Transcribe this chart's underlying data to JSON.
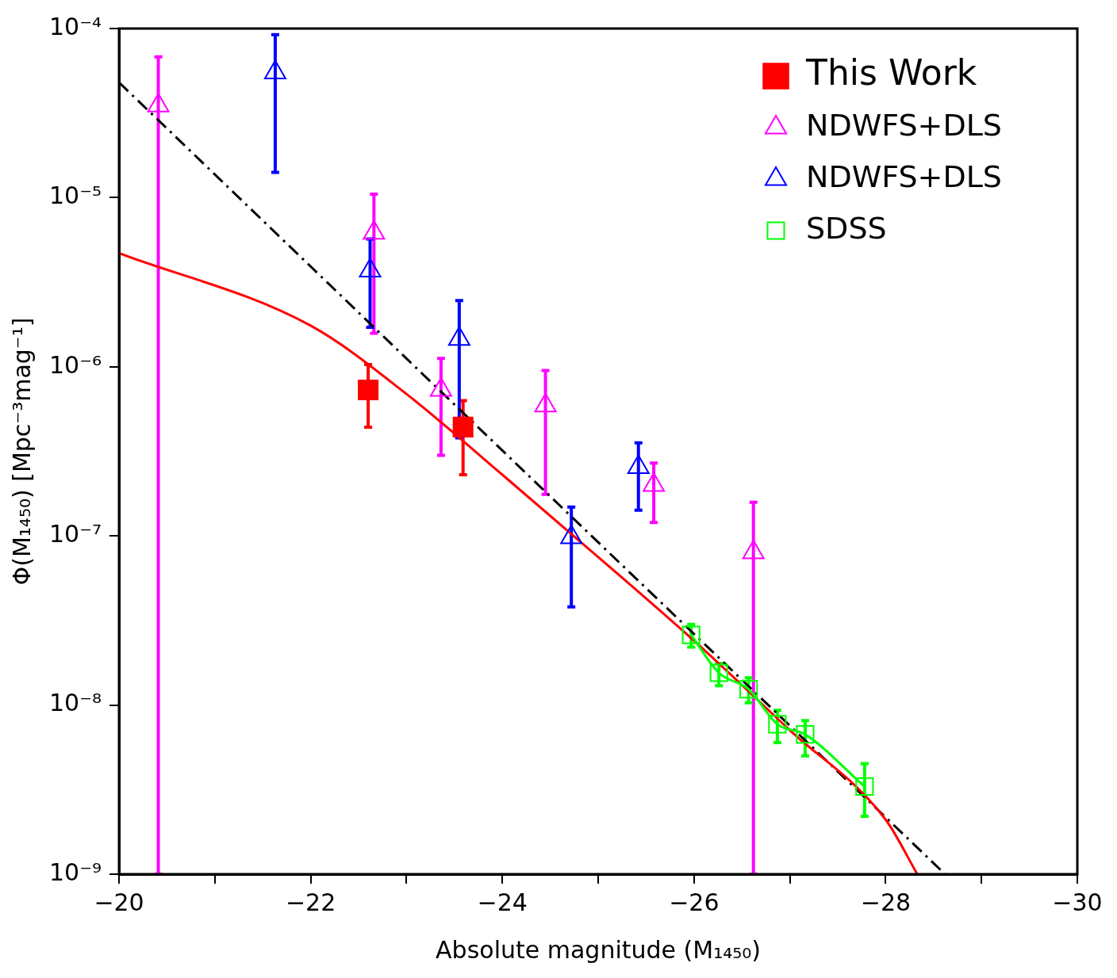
{
  "chart_data": {
    "type": "scatter",
    "xlabel": "Absolute magnitude (M₁₄₅₀)",
    "ylabel": "Φ(M₁₄₅₀) [Mpc⁻³mag⁻¹]",
    "xlim": [
      -20,
      -30
    ],
    "xticks": [
      -20,
      {
        "value": -21,
        "label": null
      },
      -22,
      {
        "value": -23,
        "label": null
      },
      -24,
      {
        "value": -25,
        "label": null
      },
      -26,
      {
        "value": -27,
        "label": null
      },
      -28,
      {
        "value": -29,
        "label": null
      },
      -30
    ],
    "ylim": [
      1e-09,
      0.0001
    ],
    "yticks": [
      {
        "value": 1e-09,
        "label": "10⁻⁹"
      },
      {
        "value": 1e-08,
        "label": "10⁻⁸"
      },
      {
        "value": 1e-07,
        "label": "10⁻⁷"
      },
      {
        "value": 1e-06,
        "label": "10⁻⁶"
      },
      {
        "value": 1e-05,
        "label": "10⁻⁵"
      },
      {
        "value": 0.0001,
        "label": "10⁻⁴"
      }
    ],
    "log": "y",
    "grid": false,
    "legend": "top right",
    "series": [
      {
        "name": "This Work",
        "type": "scatter",
        "marker": "square",
        "color": "#ff0000",
        "x": [
          -22.6,
          -23.59
        ],
        "values": [
          7.3e-07,
          4.4e-07
        ],
        "errors": [
          [
            4.4e-07,
            1.03e-06
          ],
          [
            2.3e-07,
            6.3e-07
          ]
        ]
      },
      {
        "name": "NDWFS+DLS",
        "type": "scatter",
        "marker": "triangle",
        "color": "#ff00ff",
        "x": [
          -20.41,
          -22.66,
          -23.36,
          -24.45,
          -25.58,
          -26.62
        ],
        "values": [
          3.5e-05,
          6.2e-06,
          7.3e-07,
          5.9e-07,
          2e-07,
          8e-08
        ],
        "errors": [
          [
            1e-09,
            6.8e-05
          ],
          [
            1.58e-06,
            1.05e-05
          ],
          [
            3e-07,
            1.12e-06
          ],
          [
            1.76e-07,
            9.5e-07
          ],
          [
            1.2e-07,
            2.7e-07
          ],
          [
            1e-09,
            1.58e-07
          ]
        ]
      },
      {
        "name": "NDWFS+DLS",
        "type": "scatter",
        "marker": "triangle",
        "color": "#0000ff",
        "x": [
          -21.63,
          -22.62,
          -23.55,
          -24.72,
          -25.42
        ],
        "values": [
          5.5e-05,
          3.7e-06,
          1.46e-06,
          9.8e-08,
          2.55e-07
        ],
        "errors": [
          [
            1.41e-05,
            9.2e-05
          ],
          [
            1.71e-06,
            5.7e-06
          ],
          [
            3.8e-07,
            2.46e-06
          ],
          [
            3.8e-08,
            1.48e-07
          ],
          [
            1.42e-07,
            3.55e-07
          ]
        ]
      },
      {
        "name": "SDSS",
        "type": "line",
        "marker": "square",
        "line_style": "solid",
        "color": "#00ff00",
        "x": [
          -25.97,
          -26.26,
          -26.57,
          -26.87,
          -27.16,
          -27.78
        ],
        "values": [
          2.6e-08,
          1.55e-08,
          1.24e-08,
          7.7e-09,
          6.7e-09,
          3.3e-09
        ],
        "errors": [
          [
            2.2e-08,
            3e-08
          ],
          [
            1.3e-08,
            1.76e-08
          ],
          [
            1.03e-08,
            1.45e-08
          ],
          [
            6e-09,
            9.3e-09
          ],
          [
            5e-09,
            8.1e-09
          ],
          [
            2.2e-09,
            4.5e-09
          ]
        ]
      },
      {
        "type": "line",
        "marker": "none",
        "line_style": "solid",
        "color": "#ff0000",
        "x": [
          -20,
          -22,
          -23,
          -24,
          -25,
          -26,
          -27,
          -28,
          -28.33
        ],
        "values": [
          4.7e-06,
          1.75e-06,
          6.9e-07,
          2.3e-07,
          7.5e-08,
          2.4e-08,
          7.1e-09,
          2.1e-09,
          1e-09
        ]
      },
      {
        "type": "line",
        "marker": "none",
        "line_style": "dashed",
        "color": "#000000",
        "x": [
          -20,
          -24,
          -28.62
        ],
        "values": [
          4.8e-05,
          3.2e-07,
          1e-09
        ]
      }
    ]
  }
}
